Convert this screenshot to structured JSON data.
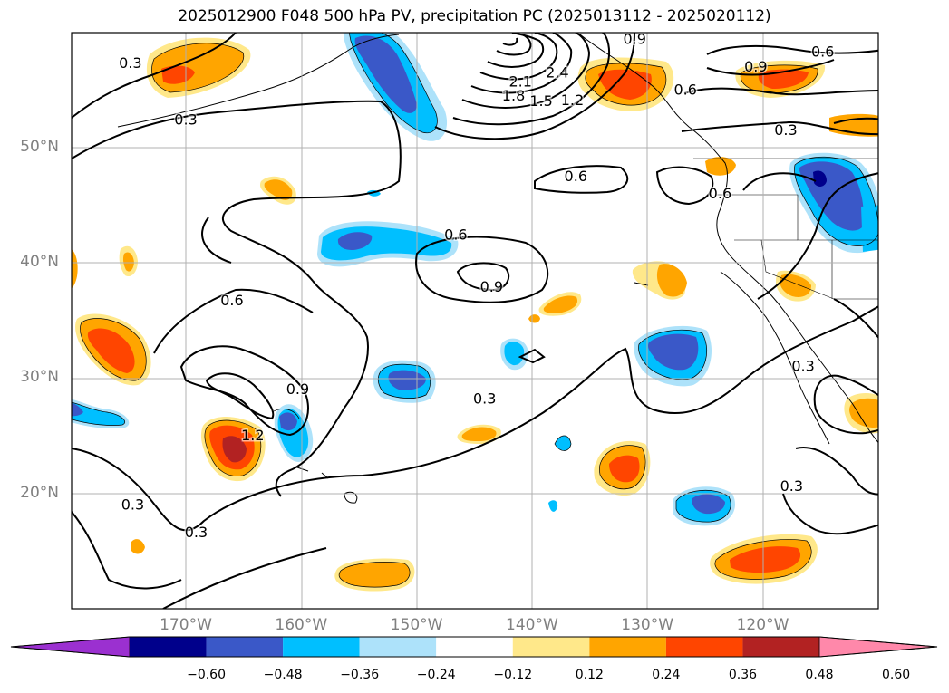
{
  "title": "2025012900 F048 500 hPa PV, precipitation PC (2025013112 - 2025020112)",
  "map": {
    "lat_labels": [
      {
        "text": "50°N",
        "lat": 50
      },
      {
        "text": "40°N",
        "lat": 40
      },
      {
        "text": "30°N",
        "lat": 30
      },
      {
        "text": "20°N",
        "lat": 20
      }
    ],
    "lon_labels": [
      {
        "text": "170°W",
        "lon": -170
      },
      {
        "text": "160°W",
        "lon": -160
      },
      {
        "text": "150°W",
        "lon": -150
      },
      {
        "text": "140°W",
        "lon": -140
      },
      {
        "text": "130°W",
        "lon": -130
      },
      {
        "text": "120°W",
        "lon": -120
      }
    ],
    "contour_labels": [
      {
        "text": "0.3",
        "lon": -174.8,
        "lat": 57.3
      },
      {
        "text": "0.3",
        "lon": -170.0,
        "lat": 52.4
      },
      {
        "text": "0.3",
        "lon": -118.0,
        "lat": 51.5
      },
      {
        "text": "0.3",
        "lon": -144.1,
        "lat": 28.2
      },
      {
        "text": "0.3",
        "lon": -174.6,
        "lat": 19.0
      },
      {
        "text": "0.3",
        "lon": -169.1,
        "lat": 16.6
      },
      {
        "text": "0.3",
        "lon": -117.5,
        "lat": 20.6
      },
      {
        "text": "0.3",
        "lon": -116.5,
        "lat": 31.0
      },
      {
        "text": "0.6",
        "lon": -114.8,
        "lat": 58.3
      },
      {
        "text": "0.6",
        "lon": -126.7,
        "lat": 55.0
      },
      {
        "text": "0.6",
        "lon": -136.2,
        "lat": 47.5
      },
      {
        "text": "0.6",
        "lon": -123.7,
        "lat": 46.0
      },
      {
        "text": "0.6",
        "lon": -146.6,
        "lat": 42.4
      },
      {
        "text": "0.6",
        "lon": -166.0,
        "lat": 36.7
      },
      {
        "text": "0.9",
        "lon": -131.1,
        "lat": 59.4
      },
      {
        "text": "0.9",
        "lon": -120.6,
        "lat": 57.0
      },
      {
        "text": "0.9",
        "lon": -143.5,
        "lat": 37.9
      },
      {
        "text": "0.9",
        "lon": -160.3,
        "lat": 29.0
      },
      {
        "text": "1.2",
        "lon": -136.5,
        "lat": 54.1
      },
      {
        "text": "1.2",
        "lon": -164.2,
        "lat": 25.0
      },
      {
        "text": "1.5",
        "lon": -139.2,
        "lat": 54.0
      },
      {
        "text": "1.8",
        "lon": -141.6,
        "lat": 54.5
      },
      {
        "text": "2.1",
        "lon": -141.0,
        "lat": 55.7
      },
      {
        "text": "2.4",
        "lon": -137.8,
        "lat": 56.5
      }
    ]
  },
  "colorbar": {
    "ticks": [
      "−0.60",
      "−0.48",
      "−0.36",
      "−0.24",
      "−0.12",
      "0.12",
      "0.24",
      "0.36",
      "0.48",
      "0.60"
    ],
    "colors": [
      "#9b30d0",
      "#00008b",
      "#3a58c8",
      "#00bfff",
      "#ade2fa",
      "#ffffff",
      "#ffe88a",
      "#ffa500",
      "#ff4500",
      "#b22222",
      "#ff88aa"
    ]
  }
}
